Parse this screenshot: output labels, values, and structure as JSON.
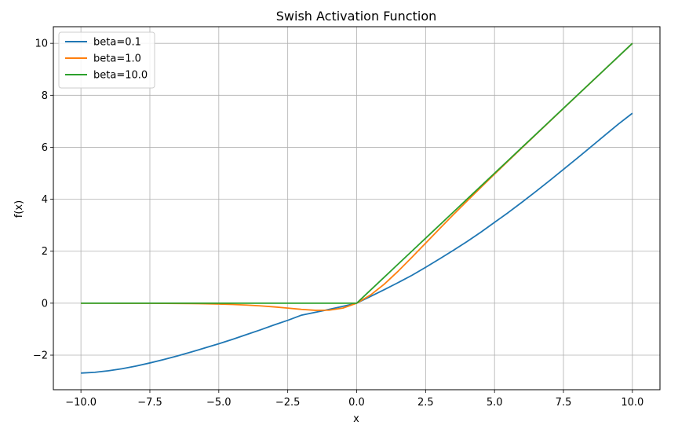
{
  "chart_data": {
    "type": "line",
    "title": "Swish Activation Function",
    "xlabel": "x",
    "ylabel": "f(x)",
    "xlim": [
      -11.0,
      11.0
    ],
    "ylim": [
      -3.33,
      10.64
    ],
    "grid": true,
    "legend_position": "top-left",
    "x_ticks": [
      -10.0,
      -7.5,
      -5.0,
      -2.5,
      0.0,
      2.5,
      5.0,
      7.5,
      10.0
    ],
    "x_tick_labels": [
      "−10.0",
      "−7.5",
      "−5.0",
      "−2.5",
      "0.0",
      "2.5",
      "5.0",
      "7.5",
      "10.0"
    ],
    "y_ticks": [
      -2,
      0,
      2,
      4,
      6,
      8,
      10
    ],
    "y_tick_labels": [
      "−2",
      "0",
      "2",
      "4",
      "6",
      "8",
      "10"
    ],
    "x": [
      -10,
      -9.5,
      -9,
      -8.5,
      -8,
      -7.5,
      -7,
      -6.5,
      -6,
      -5.5,
      -5,
      -4.5,
      -4,
      -3.5,
      -3,
      -2.5,
      -2,
      -1.5,
      -1,
      -0.5,
      0,
      0.5,
      1,
      1.5,
      2,
      2.5,
      3,
      3.5,
      4,
      4.5,
      5,
      5.5,
      6,
      6.5,
      7,
      7.5,
      8,
      8.5,
      9,
      9.5,
      10
    ],
    "series": [
      {
        "name": "beta=0.1",
        "color": "#1f77b4",
        "values": [
          -2.69,
          -2.66,
          -2.6,
          -2.52,
          -2.42,
          -2.3,
          -2.17,
          -2.03,
          -1.88,
          -1.72,
          -1.56,
          -1.39,
          -1.21,
          -1.03,
          -0.84,
          -0.66,
          -0.46,
          -0.35,
          -0.24,
          -0.12,
          0,
          0.26,
          0.52,
          0.79,
          1.07,
          1.38,
          1.7,
          2.03,
          2.37,
          2.73,
          3.11,
          3.49,
          3.89,
          4.3,
          4.72,
          5.15,
          5.58,
          6.02,
          6.46,
          6.9,
          7.31
        ]
      },
      {
        "name": "beta=1.0",
        "color": "#ff7f0e",
        "values": [
          -0.0005,
          -0.0007,
          -0.0011,
          -0.0017,
          -0.0027,
          -0.0041,
          -0.0064,
          -0.0098,
          -0.0148,
          -0.0224,
          -0.0335,
          -0.0495,
          -0.0719,
          -0.1019,
          -0.1423,
          -0.1896,
          -0.2384,
          -0.2743,
          -0.2689,
          -0.1888,
          0,
          0.3112,
          0.7311,
          1.2257,
          1.7616,
          2.3104,
          2.8577,
          3.4019,
          3.9281,
          4.4505,
          4.9665,
          5.4776,
          5.9852,
          6.4902,
          6.9936,
          7.4959,
          7.9973,
          8.4982,
          8.9989,
          9.4993,
          9.9995
        ]
      },
      {
        "name": "beta=10.0",
        "color": "#2ca02c",
        "values": [
          0,
          0,
          0,
          0,
          0,
          0,
          0,
          0,
          0,
          0,
          0,
          0,
          0,
          0,
          0,
          0,
          0,
          0,
          0,
          0,
          0,
          0.5,
          1,
          1.5,
          2,
          2.5,
          3,
          3.5,
          4,
          4.5,
          5,
          5.5,
          6,
          6.5,
          7,
          7.5,
          8,
          8.5,
          9,
          9.5,
          10
        ]
      }
    ]
  }
}
